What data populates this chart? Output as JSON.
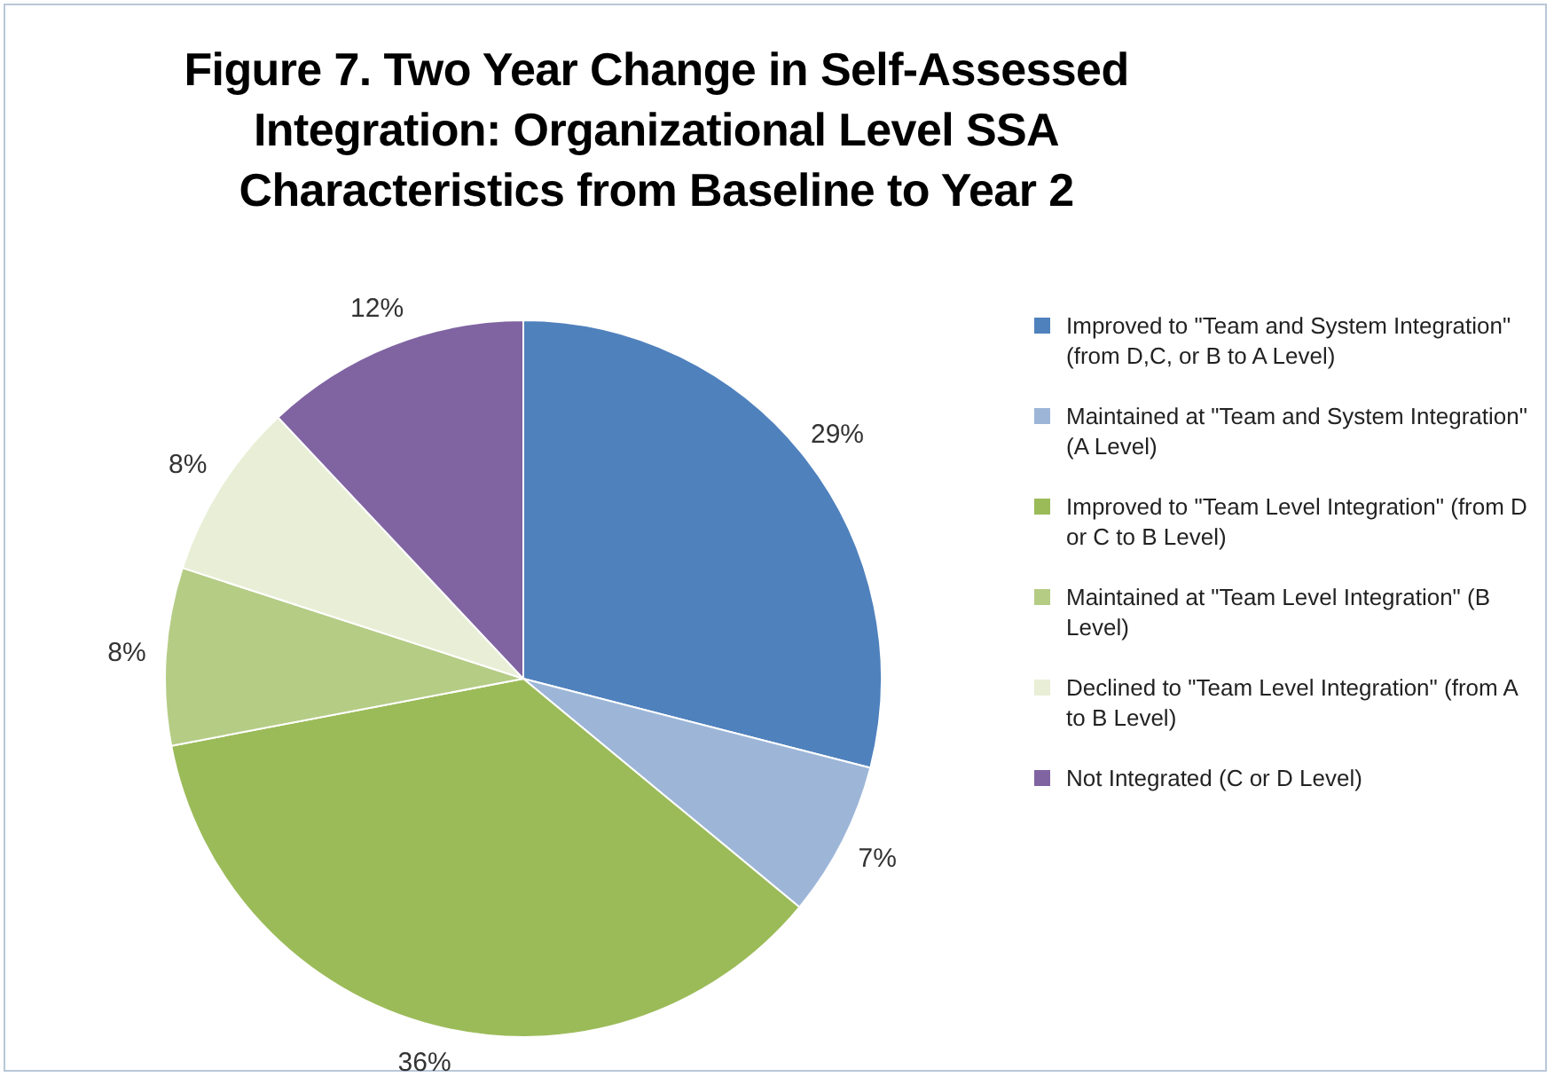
{
  "chart_data": {
    "type": "pie",
    "title": "Figure 7. Two Year Change in Self-Assessed Integration: Organizational Level SSA Characteristics from Baseline to Year 2",
    "categories": [
      "Improved to \"Team and System Integration\" (from D,C, or B to A Level)",
      "Maintained at \"Team and System Integration\" (A Level)",
      "Improved to \"Team Level Integration\" (from D or C to B Level)",
      "Maintained at \"Team Level Integration\" (B Level)",
      "Declined to \"Team Level Integration\" (from A to B Level)",
      "Not Integrated (C or D Level)"
    ],
    "values": [
      29,
      7,
      36,
      8,
      8,
      12
    ],
    "value_labels": [
      "29%",
      "7%",
      "36%",
      "8%",
      "8%",
      "12%"
    ],
    "colors": [
      "#4f81bd",
      "#9db6d8",
      "#9bbb59",
      "#b5cc85",
      "#e8efd6",
      "#8064a2"
    ],
    "legend": "right"
  }
}
